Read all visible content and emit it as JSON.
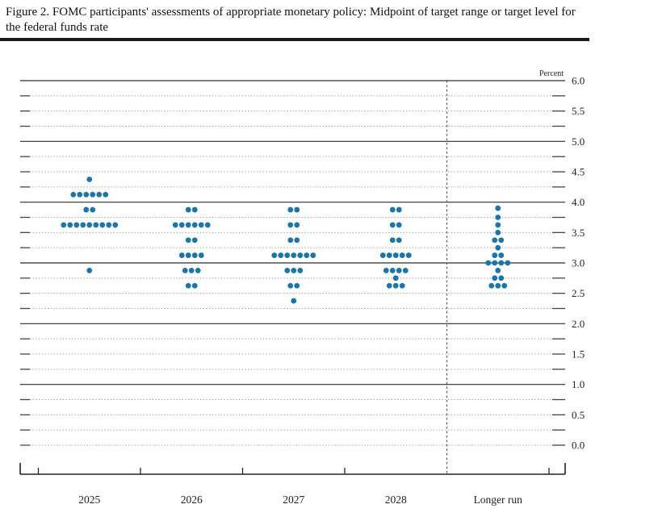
{
  "title": "Figure 2. FOMC participants' assessments of appropriate monetary policy: Midpoint of target range or target level for the federal funds rate",
  "chart_data": {
    "type": "scatter",
    "variant": "fomc-dot-plot",
    "unit_label": "Percent",
    "categories": [
      "2025",
      "2026",
      "2027",
      "2028",
      "Longer run"
    ],
    "ylim": [
      0.0,
      6.0
    ],
    "y_tick_labels": [
      "6.0",
      "5.5",
      "5.0",
      "4.5",
      "4.0",
      "3.5",
      "3.0",
      "2.5",
      "2.0",
      "1.5",
      "1.0",
      "0.5",
      "0.0"
    ],
    "minor_grid_step": 0.25,
    "solid_grid_values": [
      1,
      2,
      3,
      4,
      5,
      6
    ],
    "grid_on": true,
    "legend": "none",
    "dot_color": "#1a76a8",
    "separator_before_category": "Longer run",
    "series": [
      {
        "category": "2025",
        "dots": [
          {
            "value": 4.375,
            "count": 1
          },
          {
            "value": 4.125,
            "count": 6
          },
          {
            "value": 3.875,
            "count": 2
          },
          {
            "value": 3.625,
            "count": 9
          },
          {
            "value": 2.875,
            "count": 1
          }
        ]
      },
      {
        "category": "2026",
        "dots": [
          {
            "value": 3.875,
            "count": 2
          },
          {
            "value": 3.625,
            "count": 6
          },
          {
            "value": 3.375,
            "count": 2
          },
          {
            "value": 3.125,
            "count": 4
          },
          {
            "value": 2.875,
            "count": 3
          },
          {
            "value": 2.625,
            "count": 2
          }
        ]
      },
      {
        "category": "2027",
        "dots": [
          {
            "value": 3.875,
            "count": 2
          },
          {
            "value": 3.625,
            "count": 2
          },
          {
            "value": 3.375,
            "count": 2
          },
          {
            "value": 3.125,
            "count": 7
          },
          {
            "value": 2.875,
            "count": 3
          },
          {
            "value": 2.625,
            "count": 2
          },
          {
            "value": 2.375,
            "count": 1
          }
        ]
      },
      {
        "category": "2028",
        "dots": [
          {
            "value": 3.875,
            "count": 2
          },
          {
            "value": 3.625,
            "count": 2
          },
          {
            "value": 3.375,
            "count": 2
          },
          {
            "value": 3.125,
            "count": 5
          },
          {
            "value": 2.875,
            "count": 4
          },
          {
            "value": 2.75,
            "count": 1
          },
          {
            "value": 2.625,
            "count": 3
          }
        ]
      },
      {
        "category": "Longer run",
        "dots": [
          {
            "value": 3.9,
            "count": 1
          },
          {
            "value": 3.75,
            "count": 1
          },
          {
            "value": 3.625,
            "count": 1
          },
          {
            "value": 3.5,
            "count": 1
          },
          {
            "value": 3.375,
            "count": 2
          },
          {
            "value": 3.25,
            "count": 1
          },
          {
            "value": 3.125,
            "count": 2
          },
          {
            "value": 3.0,
            "count": 4
          },
          {
            "value": 2.875,
            "count": 1
          },
          {
            "value": 2.75,
            "count": 2
          },
          {
            "value": 2.625,
            "count": 3
          }
        ]
      }
    ]
  }
}
